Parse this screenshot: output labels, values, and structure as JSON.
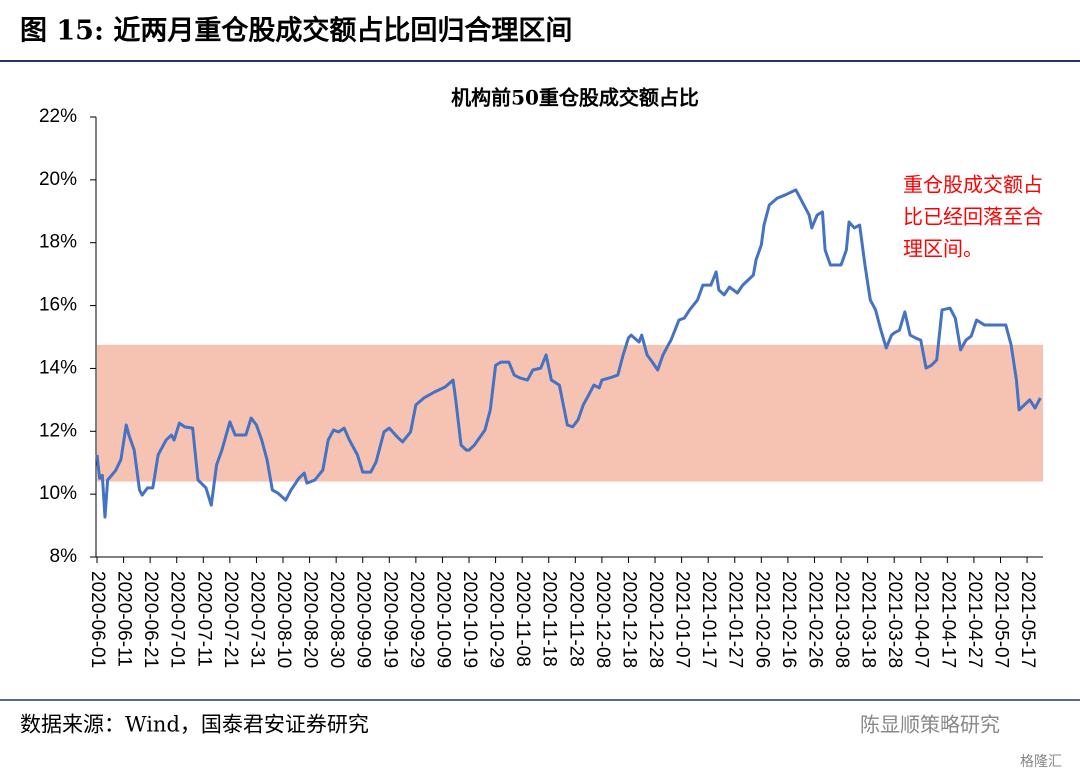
{
  "header": {
    "title": "图 15:  近两月重仓股成交额占比回归合理区间"
  },
  "chart_data": {
    "type": "line",
    "title": "机构前50重仓股成交额占比",
    "x": [
      "2020-06-01",
      "2020-06-02",
      "2020-06-03",
      "2020-06-04",
      "2020-06-05",
      "2020-06-08",
      "2020-06-10",
      "2020-06-12",
      "2020-06-13",
      "2020-06-15",
      "2020-06-17",
      "2020-06-18",
      "2020-06-20",
      "2020-06-22",
      "2020-06-24",
      "2020-06-27",
      "2020-06-29",
      "2020-06-30",
      "2020-07-02",
      "2020-07-04",
      "2020-07-07",
      "2020-07-09",
      "2020-07-12",
      "2020-07-14",
      "2020-07-16",
      "2020-07-18",
      "2020-07-21",
      "2020-07-23",
      "2020-07-27",
      "2020-07-29",
      "2020-07-31",
      "2020-08-02",
      "2020-08-04",
      "2020-08-06",
      "2020-08-08",
      "2020-08-11",
      "2020-08-13",
      "2020-08-16",
      "2020-08-18",
      "2020-08-19",
      "2020-08-22",
      "2020-08-25",
      "2020-08-27",
      "2020-08-29",
      "2020-08-31",
      "2020-09-02",
      "2020-09-04",
      "2020-09-07",
      "2020-09-09",
      "2020-09-12",
      "2020-09-14",
      "2020-09-17",
      "2020-09-19",
      "2020-09-22",
      "2020-09-24",
      "2020-09-27",
      "2020-09-29",
      "2020-10-02",
      "2020-10-06",
      "2020-10-10",
      "2020-10-13",
      "2020-10-14",
      "2020-10-16",
      "2020-10-18",
      "2020-10-19",
      "2020-10-21",
      "2020-10-25",
      "2020-10-27",
      "2020-10-29",
      "2020-10-31",
      "2020-11-03",
      "2020-11-05",
      "2020-11-07",
      "2020-11-10",
      "2020-11-12",
      "2020-11-15",
      "2020-11-17",
      "2020-11-19",
      "2020-11-22",
      "2020-11-25",
      "2020-11-27",
      "2020-11-29",
      "2020-12-01",
      "2020-12-03",
      "2020-12-05",
      "2020-12-07",
      "2020-12-08",
      "2020-12-11",
      "2020-12-14",
      "2020-12-16",
      "2020-12-18",
      "2020-12-19",
      "2020-12-22",
      "2020-12-23",
      "2020-12-25",
      "2020-12-27",
      "2020-12-29",
      "2020-12-31",
      "2021-01-02",
      "2021-01-03",
      "2021-01-06",
      "2021-01-08",
      "2021-01-10",
      "2021-01-13",
      "2021-01-15",
      "2021-01-18",
      "2021-01-20",
      "2021-01-21",
      "2021-01-23",
      "2021-01-25",
      "2021-01-28",
      "2021-01-30",
      "2021-02-01",
      "2021-02-03",
      "2021-02-04",
      "2021-02-06",
      "2021-02-07",
      "2021-02-09",
      "2021-02-12",
      "2021-02-15",
      "2021-02-19",
      "2021-02-21",
      "2021-02-24",
      "2021-02-25",
      "2021-02-27",
      "2021-03-01",
      "2021-03-02",
      "2021-03-04",
      "2021-03-08",
      "2021-03-10",
      "2021-03-11",
      "2021-03-13",
      "2021-03-15",
      "2021-03-17",
      "2021-03-19",
      "2021-03-21",
      "2021-03-23",
      "2021-03-25",
      "2021-03-27",
      "2021-03-28",
      "2021-03-30",
      "2021-04-01",
      "2021-04-03",
      "2021-04-05",
      "2021-04-07",
      "2021-04-09",
      "2021-04-11",
      "2021-04-13",
      "2021-04-15",
      "2021-04-18",
      "2021-04-20",
      "2021-04-22",
      "2021-04-24",
      "2021-04-26",
      "2021-04-28",
      "2021-05-01",
      "2021-05-05",
      "2021-05-09",
      "2021-05-11",
      "2021-05-13",
      "2021-05-14",
      "2021-05-16",
      "2021-05-18",
      "2021-05-20",
      "2021-05-22"
    ],
    "values": [
      11.25,
      10.5,
      10.6,
      9.27,
      10.45,
      10.75,
      11.1,
      12.2,
      11.88,
      11.4,
      10.13,
      9.97,
      10.2,
      10.2,
      11.25,
      11.72,
      11.88,
      11.72,
      12.26,
      12.14,
      12.1,
      10.45,
      10.2,
      9.65,
      10.93,
      11.4,
      12.3,
      11.88,
      11.88,
      12.42,
      12.2,
      11.72,
      11.09,
      10.13,
      10.04,
      9.81,
      10.13,
      10.51,
      10.67,
      10.35,
      10.45,
      10.77,
      11.72,
      12.04,
      11.98,
      12.1,
      11.72,
      11.25,
      10.7,
      10.7,
      11.02,
      11.98,
      12.1,
      11.82,
      11.66,
      11.98,
      12.84,
      13.06,
      13.25,
      13.41,
      13.63,
      13.0,
      11.56,
      11.4,
      11.4,
      11.56,
      12.04,
      12.68,
      14.1,
      14.2,
      14.2,
      13.79,
      13.7,
      13.63,
      13.95,
      14.01,
      14.43,
      13.63,
      13.47,
      12.2,
      12.14,
      12.36,
      12.84,
      13.15,
      13.47,
      13.38,
      13.63,
      13.7,
      13.79,
      14.43,
      14.97,
      15.06,
      14.84,
      15.06,
      14.43,
      14.2,
      13.95,
      14.43,
      14.75,
      14.9,
      15.54,
      15.6,
      15.86,
      16.18,
      16.65,
      16.65,
      17.07,
      16.5,
      16.34,
      16.59,
      16.4,
      16.65,
      16.81,
      16.97,
      17.45,
      17.93,
      18.56,
      19.2,
      19.42,
      19.52,
      19.68,
      19.36,
      18.88,
      18.47,
      18.88,
      18.98,
      17.77,
      17.29,
      17.29,
      17.77,
      18.66,
      18.47,
      18.56,
      17.29,
      16.18,
      15.86,
      15.22,
      14.65,
      15.06,
      15.13,
      15.22,
      15.8,
      15.06,
      14.97,
      14.9,
      14.01,
      14.1,
      14.27,
      15.86,
      15.92,
      15.6,
      14.59,
      14.9,
      15.03,
      15.54,
      15.38,
      15.38,
      15.38,
      14.75,
      13.63,
      12.68,
      12.84,
      13.0,
      12.74,
      13.06
    ],
    "color": "#4472c4",
    "xlim": [
      "2020-06-01",
      "2021-05-23"
    ],
    "xticks": [
      "2020-06-01",
      "2020-06-11",
      "2020-06-21",
      "2020-07-01",
      "2020-07-11",
      "2020-07-21",
      "2020-07-31",
      "2020-08-10",
      "2020-08-20",
      "2020-08-30",
      "2020-09-09",
      "2020-09-19",
      "2020-09-29",
      "2020-10-09",
      "2020-10-19",
      "2020-10-29",
      "2020-11-08",
      "2020-11-18",
      "2020-11-28",
      "2020-12-08",
      "2020-12-18",
      "2020-12-28",
      "2021-01-07",
      "2021-01-17",
      "2021-01-27",
      "2021-02-06",
      "2021-02-16",
      "2021-02-26",
      "2021-03-08",
      "2021-03-18",
      "2021-03-28",
      "2021-04-07",
      "2021-04-17",
      "2021-04-27",
      "2021-05-07",
      "2021-05-17"
    ],
    "ylim": [
      8,
      22
    ],
    "yticks": [
      {
        "value": 8,
        "label": "8%"
      },
      {
        "value": 10,
        "label": "10%"
      },
      {
        "value": 12,
        "label": "12%"
      },
      {
        "value": 14,
        "label": "14%"
      },
      {
        "value": 16,
        "label": "16%"
      },
      {
        "value": 18,
        "label": "18%"
      },
      {
        "value": 20,
        "label": "20%"
      },
      {
        "value": 22,
        "label": "22%"
      }
    ],
    "band": [
      10.4,
      14.75
    ],
    "band_color": "#f6c3b3",
    "annotation": [
      "重仓股成交额占",
      "比已经回落至合",
      "理区间。"
    ],
    "annotation_color": "#ff0000"
  },
  "footer": {
    "source": "数据来源：Wind，国泰君安证券研究",
    "watermark": "陈显顺策略研究",
    "logo": "格隆汇"
  }
}
